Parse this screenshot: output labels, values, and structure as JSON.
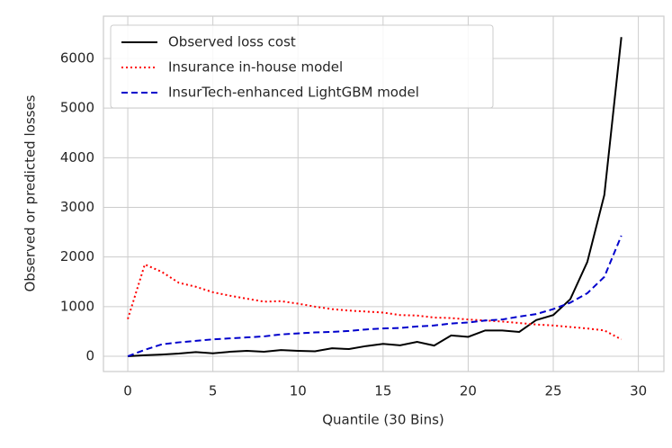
{
  "chart_data": {
    "type": "line",
    "xlabel": "Quantile (30 Bins)",
    "ylabel": "Observed or predicted losses",
    "x": [
      0,
      1,
      2,
      3,
      4,
      5,
      6,
      7,
      8,
      9,
      10,
      11,
      12,
      13,
      14,
      15,
      16,
      17,
      18,
      19,
      20,
      21,
      22,
      23,
      24,
      25,
      26,
      27,
      28,
      29
    ],
    "series": [
      {
        "name": "Observed loss cost",
        "color": "#000000",
        "style": "solid",
        "values": [
          0,
          20,
          35,
          55,
          85,
          60,
          90,
          110,
          90,
          125,
          110,
          100,
          160,
          145,
          205,
          250,
          220,
          290,
          215,
          420,
          390,
          520,
          520,
          490,
          730,
          830,
          1150,
          1900,
          3250,
          6430
        ]
      },
      {
        "name": "Insurance in-house model",
        "color": "#ff0000",
        "style": "dotted",
        "values": [
          750,
          1850,
          1700,
          1480,
          1400,
          1290,
          1220,
          1160,
          1100,
          1110,
          1060,
          1000,
          950,
          920,
          900,
          880,
          830,
          820,
          780,
          770,
          740,
          720,
          700,
          670,
          640,
          620,
          590,
          560,
          520,
          340
        ]
      },
      {
        "name": "InsurTech-enhanced LightGBM model",
        "color": "#0000cc",
        "style": "dashed",
        "values": [
          0,
          130,
          240,
          280,
          310,
          340,
          360,
          380,
          400,
          440,
          460,
          480,
          490,
          510,
          540,
          560,
          570,
          600,
          620,
          660,
          680,
          720,
          740,
          800,
          850,
          950,
          1080,
          1270,
          1600,
          2430
        ]
      }
    ],
    "xlim": [
      -1.43,
      31.5
    ],
    "xticks": [
      0,
      5,
      10,
      15,
      20,
      25,
      30
    ],
    "ylim": [
      -308,
      6852
    ],
    "yticks": [
      0,
      1000,
      2000,
      3000,
      4000,
      5000,
      6000
    ],
    "grid": true,
    "legend": "upper left"
  }
}
